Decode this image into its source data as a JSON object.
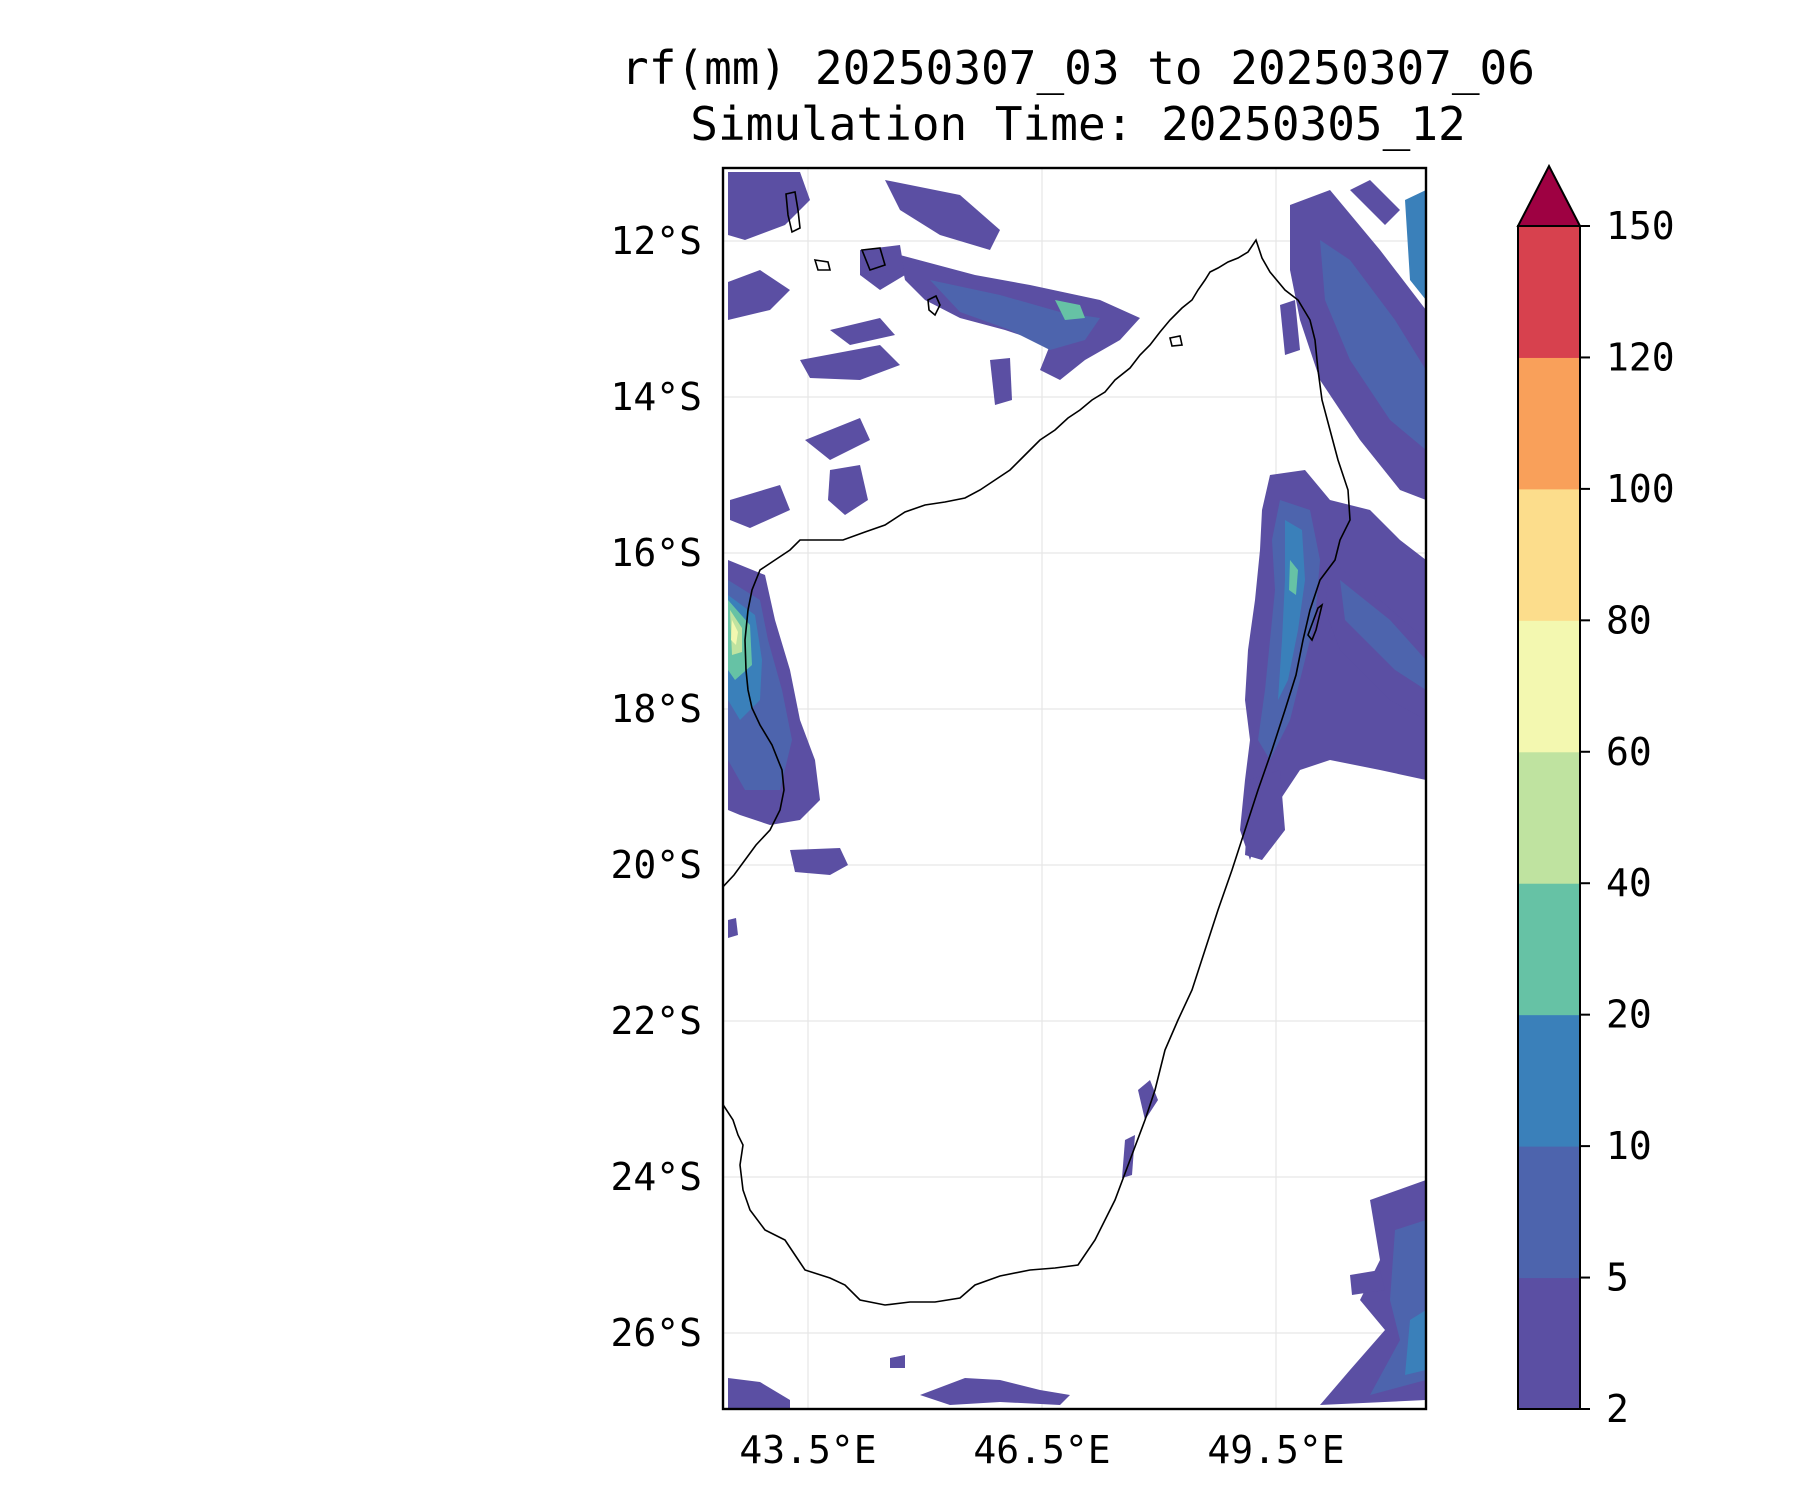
{
  "title_line1": "rf(mm) 20250307_03 to 20250307_06",
  "title_line2": "Simulation Time: 20250305_12",
  "map": {
    "lat_labels": [
      "12°S",
      "14°S",
      "16°S",
      "18°S",
      "20°S",
      "22°S",
      "24°S",
      "26°S"
    ],
    "lon_labels": [
      "43.5°E",
      "46.5°E",
      "49.5°E"
    ],
    "gridlines": true
  },
  "colorbar": {
    "tick_labels": [
      "2",
      "5",
      "10",
      "20",
      "40",
      "60",
      "80",
      "100",
      "120",
      "150"
    ],
    "colors": [
      "#5b4fa3",
      "#4d64ad",
      "#3a80ba",
      "#66c2a5",
      "#bfe3a0",
      "#f3f8b0",
      "#fcdd8c",
      "#f9a05a",
      "#d7414e",
      "#9e0142"
    ],
    "extend": "max"
  }
}
